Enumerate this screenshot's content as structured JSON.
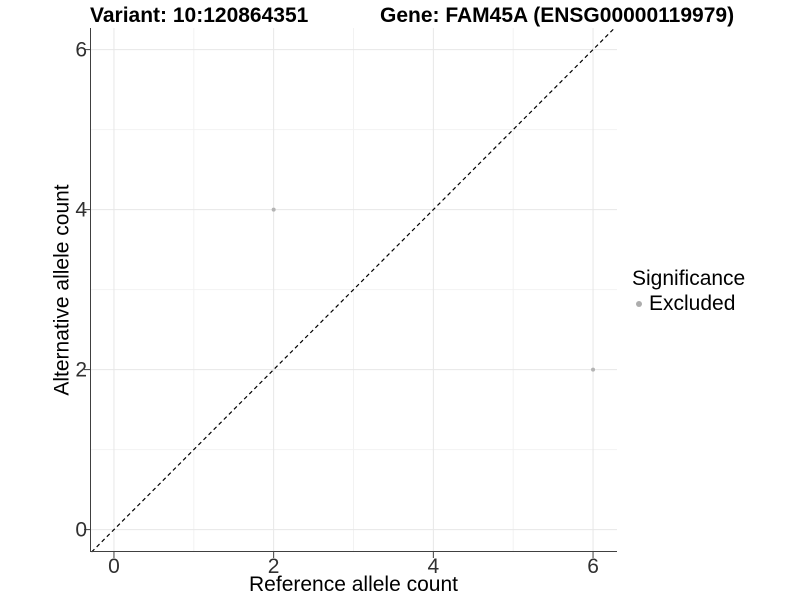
{
  "chart_data": {
    "type": "scatter",
    "titles": {
      "left": "Variant: 10:120864351",
      "right": "Gene: FAM45A (ENSG00000119979)"
    },
    "xlabel": "Reference allele count",
    "ylabel": "Alternative allele count",
    "xlim": [
      -0.3,
      6.3
    ],
    "ylim": [
      -0.28,
      6.27
    ],
    "x_ticks": [
      0,
      2,
      4,
      6
    ],
    "y_ticks": [
      0,
      2,
      4,
      6
    ],
    "minor_gridlines_x": [
      1,
      3,
      5
    ],
    "minor_gridlines_y": [
      1,
      3,
      5
    ],
    "grid": true,
    "identity_line": {
      "style": "dashed",
      "color": "#000000",
      "equation": "y = x"
    },
    "series": [
      {
        "name": "Excluded",
        "color": "#b4b4b4",
        "points": [
          {
            "x": 2,
            "y": 4
          },
          {
            "x": 6,
            "y": 2
          }
        ]
      }
    ],
    "legend": {
      "title": "Significance",
      "position": "right",
      "items": [
        {
          "label": "Excluded",
          "color": "#adadad"
        }
      ]
    }
  },
  "colors": {
    "background": "#ffffff",
    "grid_major": "#e7e7e7",
    "grid_minor": "#f2f2f2",
    "axis": "#404040",
    "tick_label": "#303030",
    "point": "#b4b4b4",
    "title": "#000000"
  }
}
